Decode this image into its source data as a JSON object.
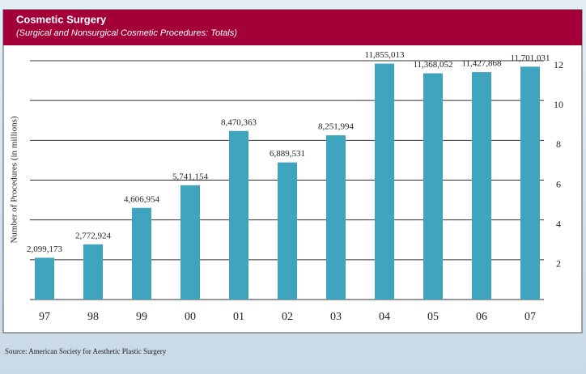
{
  "chart_data": {
    "type": "bar",
    "title": "Cosmetic Surgery",
    "subtitle": "(Surgical and Nonsurgical Cosmetic Procedures: Totals)",
    "y_label": "Number of Procedures (in millions)",
    "source": "Source: American Society for Aesthetic Plastic Surgery",
    "categories": [
      "97",
      "98",
      "99",
      "00",
      "01",
      "02",
      "03",
      "04",
      "05",
      "06",
      "07"
    ],
    "values": [
      2.099173,
      2.772924,
      4.606954,
      5.741154,
      8.470363,
      6.889531,
      8.251994,
      11.855013,
      11.368052,
      11.427868,
      11.701031
    ],
    "value_labels": [
      "2,099,173",
      "2,772,924",
      "4,606,954",
      "5,741,154",
      "8,470,363",
      "6,889,531",
      "8,251,994",
      "11,855,013",
      "11,368,052",
      "11,427,868",
      "11,701,031"
    ],
    "color": "#3fa5bf",
    "ylim": [
      0,
      12
    ],
    "yticks": [
      2,
      4,
      6,
      8,
      10,
      12
    ],
    "grid": true
  }
}
